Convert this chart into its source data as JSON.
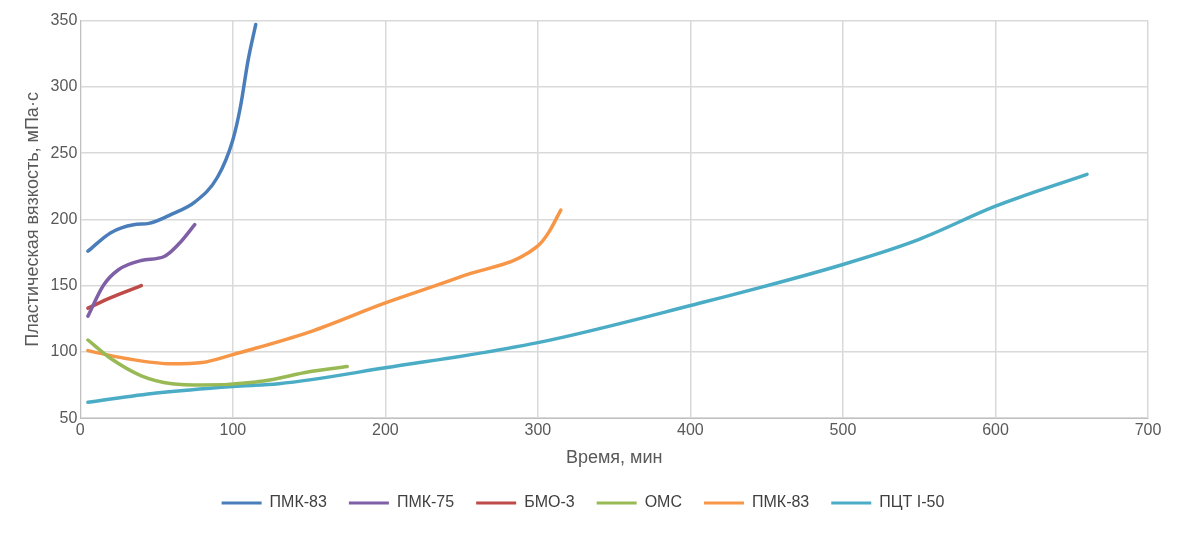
{
  "chart_data": {
    "type": "line",
    "xlabel": "Время, мин",
    "ylabel": "Пластическая вязкость, мПа·с",
    "xlim": [
      0,
      700
    ],
    "xticks": [
      0,
      100,
      200,
      300,
      400,
      500,
      600,
      700
    ],
    "ylim": [
      50,
      350
    ],
    "yticks": [
      50,
      100,
      150,
      200,
      250,
      300,
      350
    ],
    "grid": true,
    "legend": "bottom",
    "marker": "none",
    "line_style": "solid",
    "series": [
      {
        "name": "ПМК-83",
        "color": "#4a7ebb",
        "x": [
          5,
          20,
          35,
          45,
          60,
          75,
          90,
          100,
          105,
          110,
          115
        ],
        "values": [
          176,
          190,
          196,
          197,
          204,
          213,
          232,
          260,
          285,
          320,
          347
        ]
      },
      {
        "name": "ПМК-75",
        "color": "#7f5fa6",
        "x": [
          5,
          15,
          25,
          40,
          55,
          65,
          75
        ],
        "values": [
          127,
          150,
          162,
          169,
          172,
          182,
          196
        ]
      },
      {
        "name": "БМО-3",
        "color": "#be4b48",
        "x": [
          5,
          20,
          40
        ],
        "values": [
          133,
          141,
          150
        ]
      },
      {
        "name": "ОМС",
        "color": "#98b954",
        "x": [
          5,
          20,
          40,
          60,
          80,
          120,
          150,
          175
        ],
        "values": [
          109,
          95,
          82,
          76,
          75,
          78,
          85,
          89
        ]
      },
      {
        "name": "ПМК-83",
        "color": "#f79646",
        "x": [
          5,
          30,
          60,
          80,
          100,
          150,
          200,
          250,
          300,
          307,
          315
        ],
        "values": [
          101,
          95,
          91,
          92,
          98,
          115,
          137,
          157,
          180,
          190,
          207
        ]
      },
      {
        "name": "ПЦТ I-50",
        "color": "#4bacc6",
        "x": [
          5,
          50,
          100,
          130,
          200,
          300,
          400,
          500,
          550,
          600,
          660
        ],
        "values": [
          62,
          69,
          74,
          76,
          88,
          107,
          135,
          166,
          185,
          210,
          234
        ]
      }
    ]
  }
}
